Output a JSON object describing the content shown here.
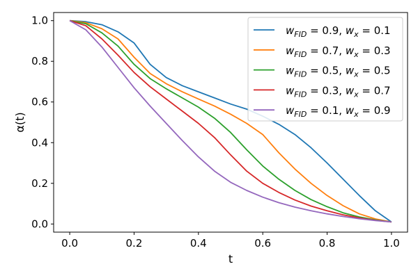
{
  "chart_data": {
    "type": "line",
    "title": "",
    "xlabel": "t",
    "ylabel": "α(t)",
    "xlim": [
      -0.05,
      1.05
    ],
    "ylim": [
      -0.04,
      1.04
    ],
    "xticks": [
      0.0,
      0.2,
      0.4,
      0.6,
      0.8,
      1.0
    ],
    "xtick_labels": [
      "0.0",
      "0.2",
      "0.4",
      "0.6",
      "0.8",
      "1.0"
    ],
    "yticks": [
      0.0,
      0.2,
      0.4,
      0.6,
      0.8,
      1.0
    ],
    "ytick_labels": [
      "0.0",
      "0.2",
      "0.4",
      "0.6",
      "0.8",
      "1.0"
    ],
    "legend_position": "top-right",
    "x": [
      0.0,
      0.05,
      0.1,
      0.15,
      0.2,
      0.25,
      0.3,
      0.35,
      0.4,
      0.45,
      0.5,
      0.55,
      0.6,
      0.65,
      0.7,
      0.75,
      0.8,
      0.85,
      0.9,
      0.95,
      1.0
    ],
    "series": [
      {
        "name": "w_FID = 0.9, w_x = 0.1",
        "legend": [
          "w",
          "FID",
          " = 0.9, ",
          "w",
          "x",
          " = 0.1"
        ],
        "color": "#1f77b4",
        "values": [
          1.0,
          0.995,
          0.98,
          0.945,
          0.89,
          0.785,
          0.72,
          0.68,
          0.65,
          0.62,
          0.59,
          0.565,
          0.53,
          0.49,
          0.44,
          0.375,
          0.3,
          0.22,
          0.14,
          0.065,
          0.01
        ]
      },
      {
        "name": "w_FID = 0.7, w_x = 0.3",
        "legend": [
          "w",
          "FID",
          " = 0.7, ",
          "w",
          "x",
          " = 0.3"
        ],
        "color": "#ff7f0e",
        "values": [
          1.0,
          0.99,
          0.96,
          0.91,
          0.82,
          0.74,
          0.69,
          0.65,
          0.615,
          0.58,
          0.54,
          0.495,
          0.44,
          0.35,
          0.27,
          0.2,
          0.14,
          0.09,
          0.05,
          0.025,
          0.01
        ]
      },
      {
        "name": "w_FID = 0.5, w_x = 0.5",
        "legend": [
          "w",
          "FID",
          " = 0.5, ",
          "w",
          "x",
          " = 0.5"
        ],
        "color": "#2ca02c",
        "values": [
          1.0,
          0.985,
          0.94,
          0.875,
          0.785,
          0.715,
          0.665,
          0.62,
          0.575,
          0.52,
          0.45,
          0.365,
          0.285,
          0.22,
          0.165,
          0.12,
          0.085,
          0.055,
          0.035,
          0.02,
          0.01
        ]
      },
      {
        "name": "w_FID = 0.3, w_x = 0.7",
        "legend": [
          "w",
          "FID",
          " = 0.3, ",
          "w",
          "x",
          " = 0.7"
        ],
        "color": "#d62728",
        "values": [
          1.0,
          0.975,
          0.91,
          0.83,
          0.745,
          0.675,
          0.615,
          0.555,
          0.495,
          0.425,
          0.34,
          0.26,
          0.2,
          0.155,
          0.118,
          0.088,
          0.065,
          0.045,
          0.03,
          0.018,
          0.01
        ]
      },
      {
        "name": "w_FID = 0.1, w_x = 0.9",
        "legend": [
          "w",
          "FID",
          " = 0.1, ",
          "w",
          "x",
          " = 0.9"
        ],
        "color": "#9467bd",
        "values": [
          1.0,
          0.955,
          0.87,
          0.77,
          0.67,
          0.58,
          0.495,
          0.41,
          0.33,
          0.26,
          0.205,
          0.165,
          0.132,
          0.105,
          0.083,
          0.065,
          0.05,
          0.037,
          0.026,
          0.017,
          0.01
        ]
      }
    ]
  }
}
